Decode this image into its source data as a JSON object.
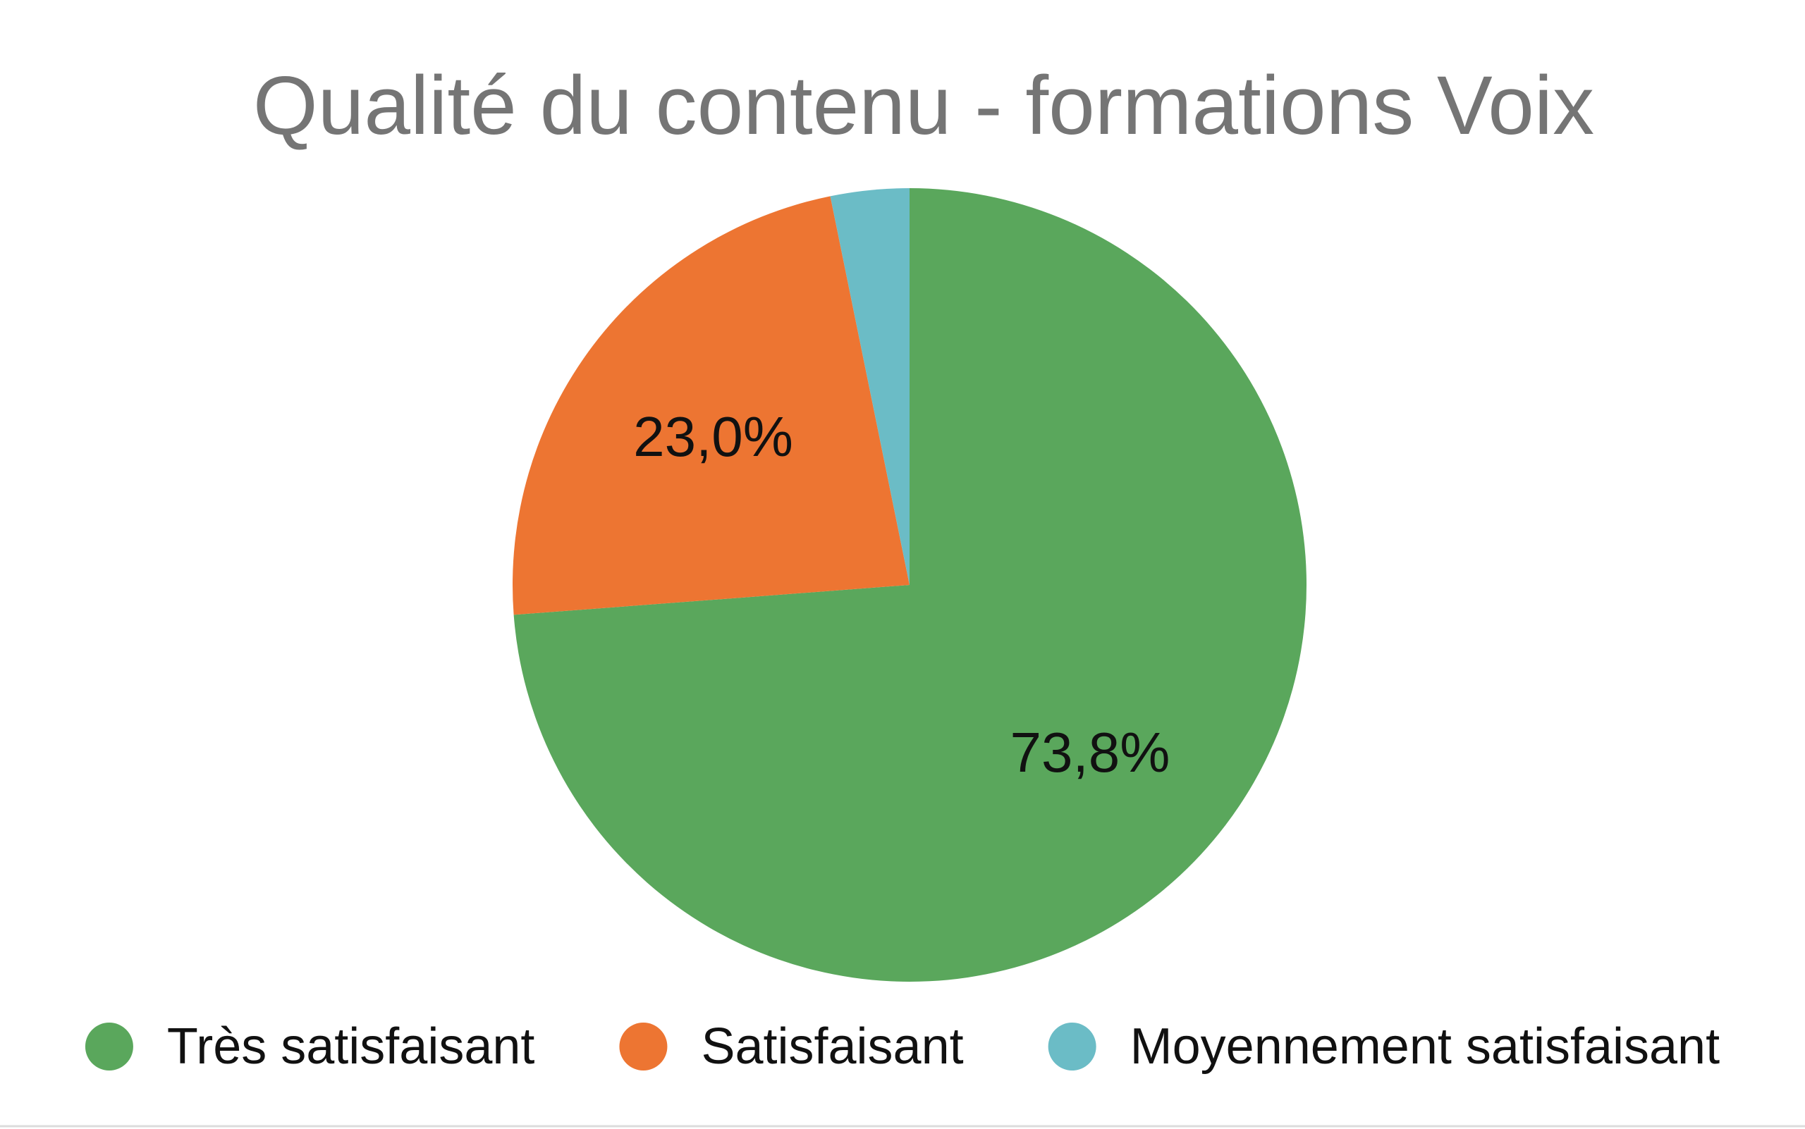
{
  "chart_data": {
    "type": "pie",
    "title": "Qualité du contenu - formations Voix",
    "slices": [
      {
        "label": "Très satisfaisant",
        "value": 73.8,
        "display": "73,8%",
        "color": "#5aa75c"
      },
      {
        "label": "Satisfaisant",
        "value": 23.0,
        "display": "23,0%",
        "color": "#ed7532"
      },
      {
        "label": "Moyennement satisfaisant",
        "value": 3.2,
        "display": "",
        "color": "#6bbcc6"
      }
    ],
    "start": "top",
    "direction": "clockwise",
    "legend_position": "bottom"
  }
}
